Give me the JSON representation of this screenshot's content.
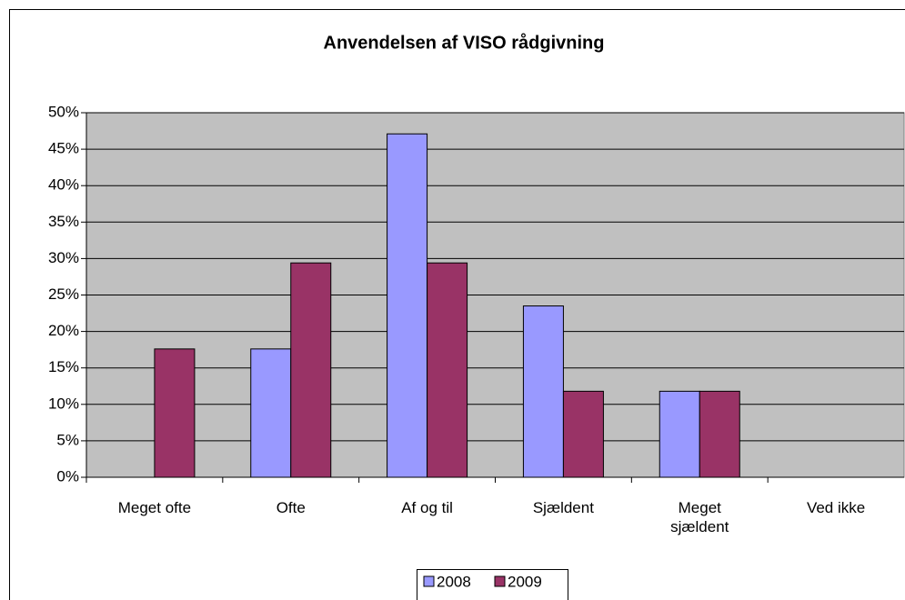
{
  "chart_data": {
    "type": "bar",
    "title": "Anvendelsen af VISO rådgivning",
    "categories": [
      "Meget ofte",
      "Ofte",
      "Af og til",
      "Sjældent",
      "Meget sjældent",
      "Ved ikke"
    ],
    "series": [
      {
        "name": "2008",
        "color": "#9999ff",
        "values": [
          0,
          17.6,
          47.1,
          23.5,
          11.8,
          0
        ]
      },
      {
        "name": "2009",
        "color": "#993366",
        "values": [
          17.6,
          29.4,
          29.4,
          11.8,
          11.8,
          0
        ]
      }
    ],
    "ylim": [
      0,
      50
    ],
    "yticks": [
      {
        "value": 0,
        "label": "0%"
      },
      {
        "value": 5,
        "label": "5%"
      },
      {
        "value": 10,
        "label": "10%"
      },
      {
        "value": 15,
        "label": "15%"
      },
      {
        "value": 20,
        "label": "20%"
      },
      {
        "value": 25,
        "label": "25%"
      },
      {
        "value": 30,
        "label": "30%"
      },
      {
        "value": 35,
        "label": "35%"
      },
      {
        "value": 40,
        "label": "40%"
      },
      {
        "value": 45,
        "label": "45%"
      },
      {
        "value": 50,
        "label": "50%"
      }
    ],
    "grid": true,
    "legend": "bottom"
  }
}
